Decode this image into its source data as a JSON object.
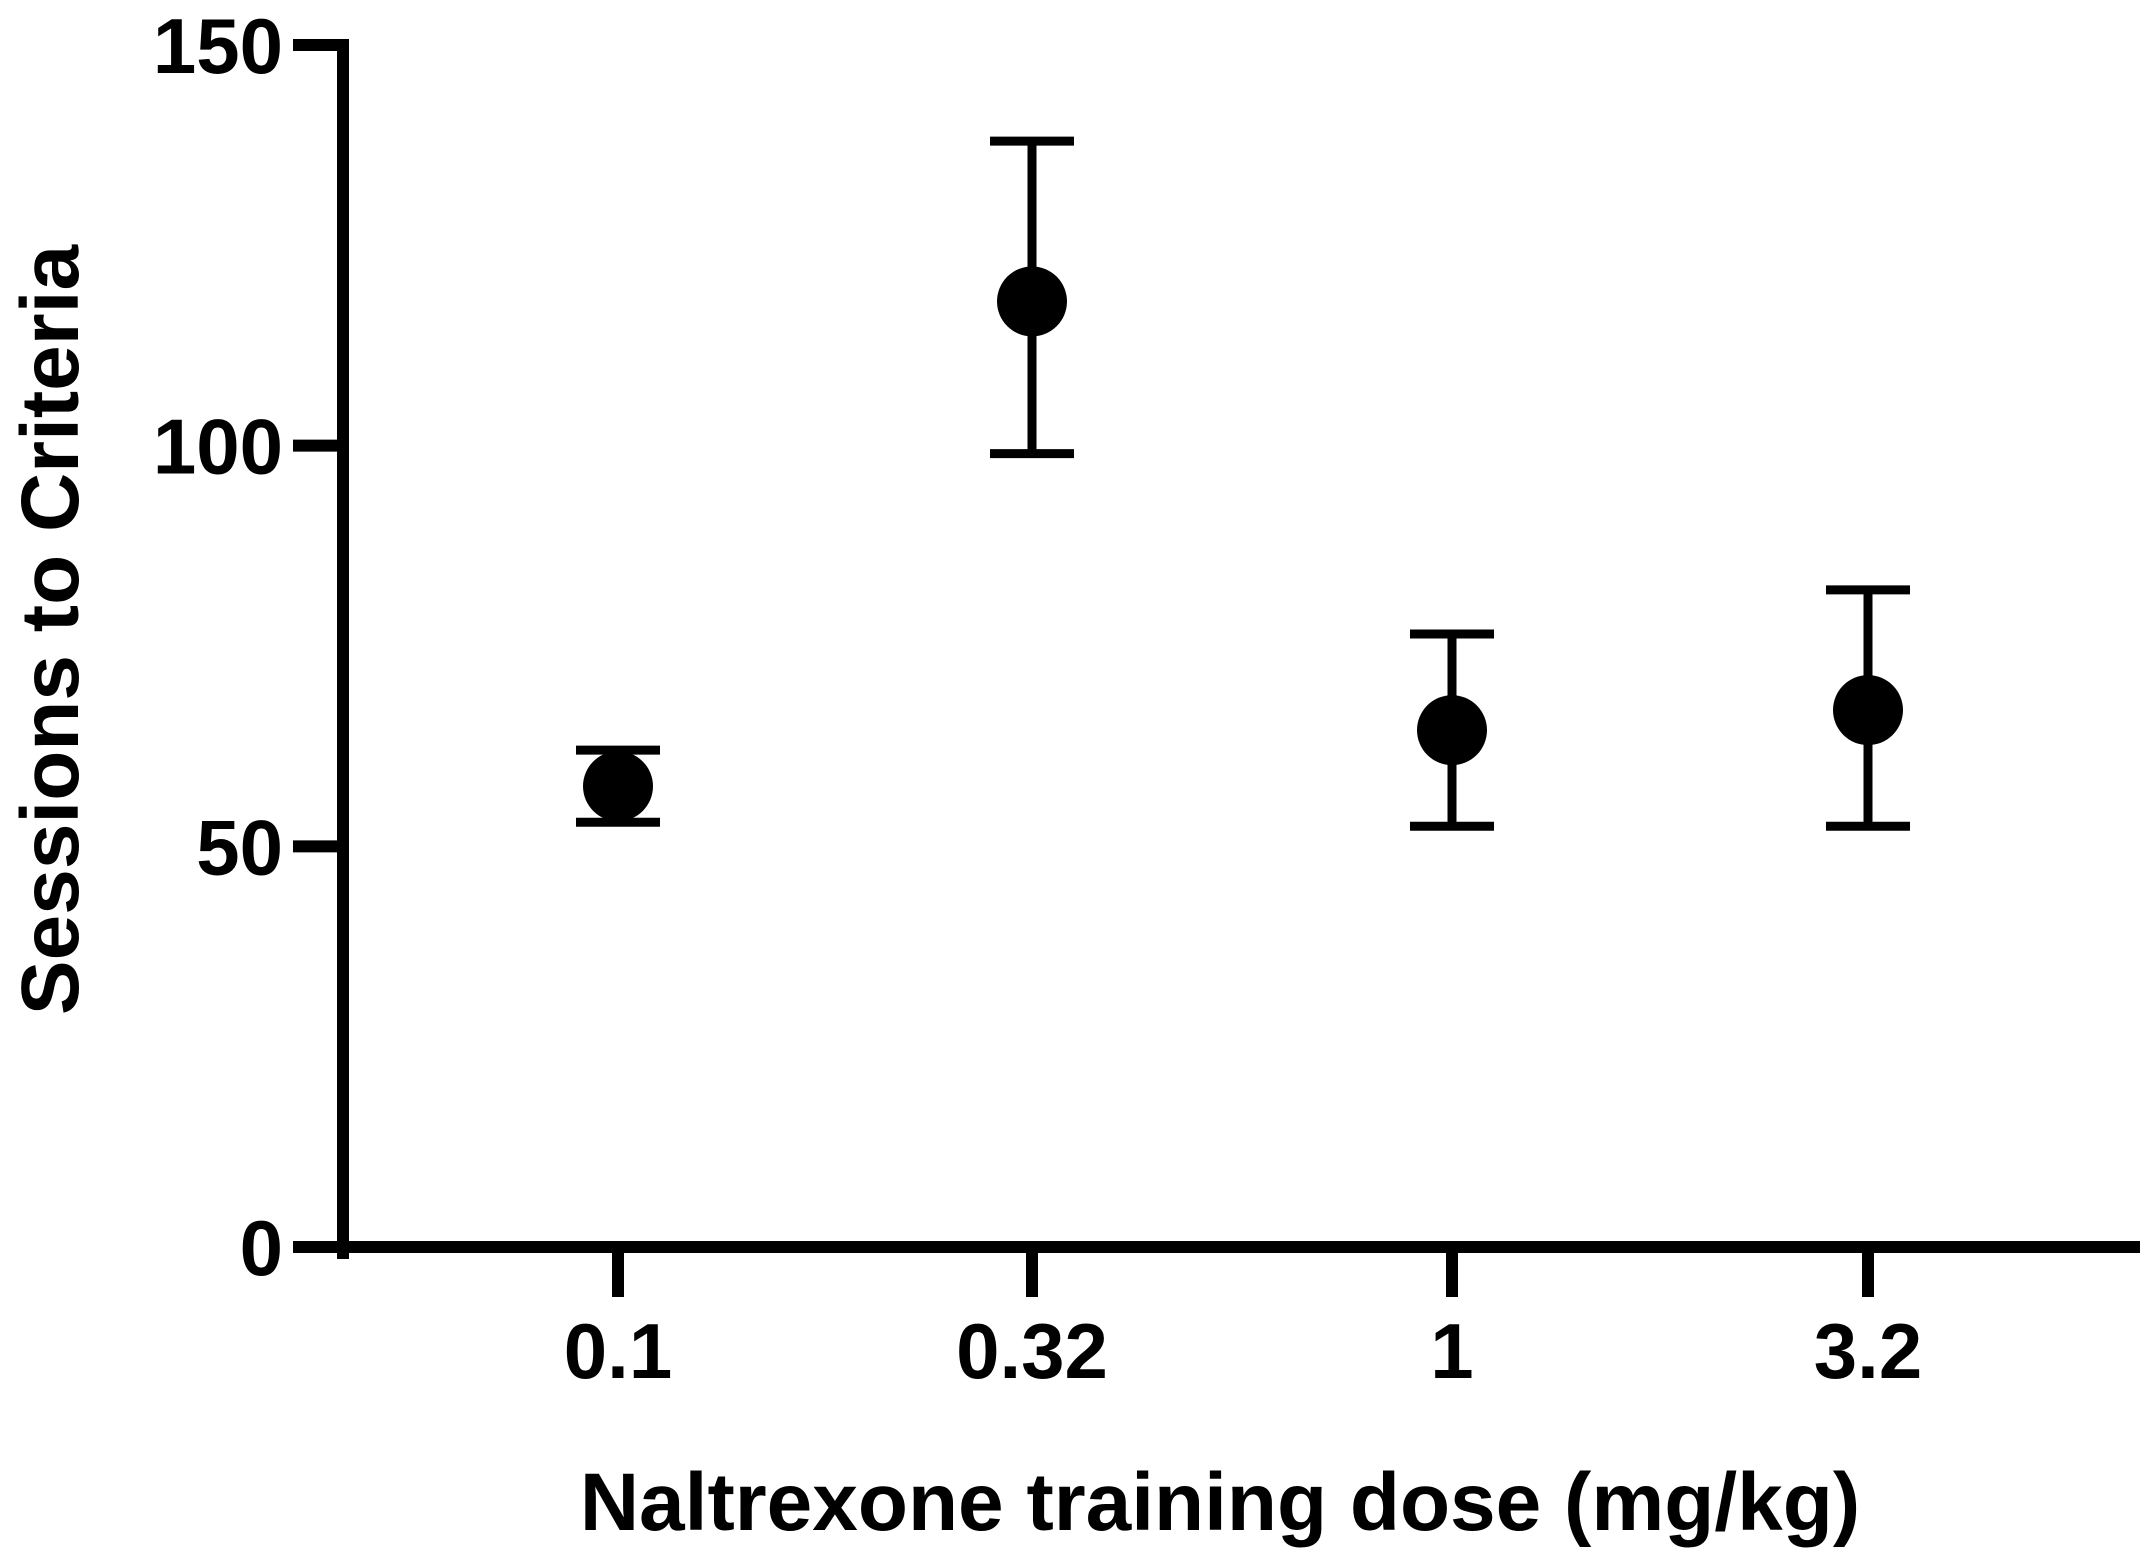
{
  "chart_data": {
    "type": "scatter",
    "categories": [
      "0.1",
      "0.32",
      "1",
      "3.2"
    ],
    "values": [
      57.5,
      118,
      64.5,
      67
    ],
    "error_upper": [
      62,
      138,
      76.5,
      82
    ],
    "error_lower": [
      53,
      99,
      52.5,
      52.5
    ],
    "xlabel": "Naltrexone training dose (mg/kg)",
    "ylabel": "Sessions to Criteria",
    "ylim": [
      0,
      150
    ],
    "yticks": [
      "0",
      "50",
      "100",
      "150"
    ],
    "grid": false,
    "legend": "none",
    "marker_color": "#000000"
  }
}
